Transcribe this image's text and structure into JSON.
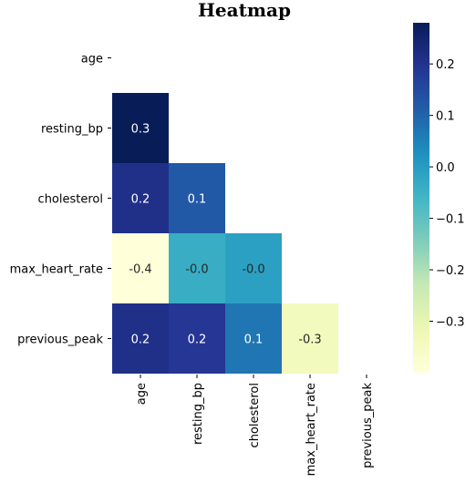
{
  "chart_data": {
    "type": "heatmap",
    "title": "Heatmap",
    "x_labels": [
      "age",
      "resting_bp",
      "cholesterol",
      "max_heart_rate",
      "previous_peak"
    ],
    "y_labels": [
      "age",
      "resting_bp",
      "cholesterol",
      "max_heart_rate",
      "previous_peak"
    ],
    "mask": "upper-triangle-including-diagonal",
    "values": [
      [
        null,
        null,
        null,
        null,
        null
      ],
      [
        0.28,
        null,
        null,
        null,
        null
      ],
      [
        0.21,
        0.12,
        null,
        null,
        null
      ],
      [
        -0.4,
        -0.04,
        -0.01,
        null,
        null
      ],
      [
        0.21,
        0.19,
        0.07,
        -0.34,
        null
      ]
    ],
    "annotations": [
      [
        null,
        null,
        null,
        null,
        null
      ],
      [
        "0.3",
        null,
        null,
        null,
        null
      ],
      [
        "0.2",
        "0.1",
        null,
        null,
        null
      ],
      [
        "-0.4",
        "-0.0",
        "-0.0",
        null,
        null
      ],
      [
        "0.2",
        "0.2",
        "0.1",
        "-0.3",
        null
      ]
    ],
    "colormap": "YlGnBu",
    "vmin": -0.4,
    "vmax": 0.28,
    "colorbar": {
      "ticks": [
        0.2,
        0.1,
        0.0,
        -0.1,
        -0.2,
        -0.3
      ],
      "tick_labels": [
        "0.2",
        "0.1",
        "0.0",
        "−0.1",
        "−0.2",
        "−0.3"
      ],
      "placement": "right"
    }
  }
}
